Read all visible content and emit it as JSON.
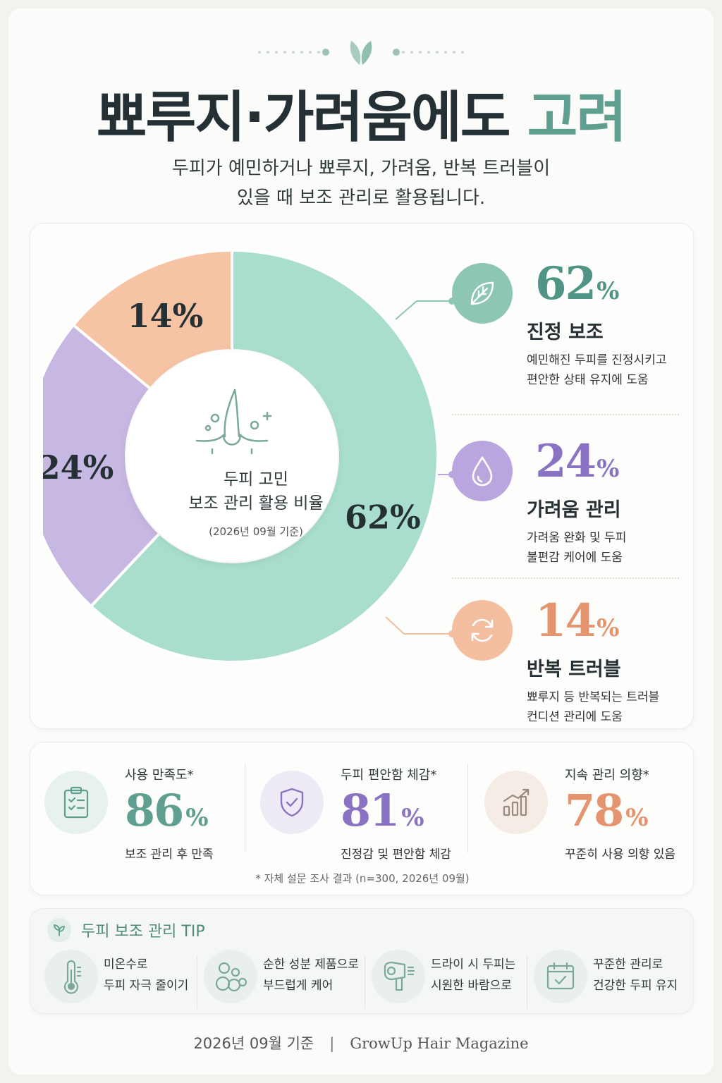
{
  "title": {
    "main": "뾰루지·가려움에도 ",
    "accent": "고려"
  },
  "subtitle": {
    "line1": "두피가 예민하거나 뾰루지, 가려움, 반복 트러블이",
    "line2": "있을 때 보조 관리로 활용됩니다."
  },
  "chart_data": {
    "type": "pie",
    "categories": [
      "진정 보조",
      "가려움 관리",
      "반복 트러블"
    ],
    "values": [
      62,
      24,
      14
    ],
    "value_labels": [
      "62%",
      "24%",
      "14%"
    ],
    "colors": [
      "#a9dece",
      "#c7b7e3",
      "#f6c3a5"
    ],
    "title": "두피 고민 보조 관리 활용 비율",
    "subtitle": "(2026년 09월 기준)"
  },
  "center": {
    "line1": "두피 고민",
    "line2": "보조 관리 활용 비율",
    "date": "(2026년 09월 기준)"
  },
  "legend": [
    {
      "pct": "62",
      "sign": "%",
      "label": "진정 보조",
      "desc1": "예민해진 두피를 진정시키고",
      "desc2": "편안한 상태 유지에 도움",
      "color": "#4f9484",
      "icon": "leaf-icon"
    },
    {
      "pct": "24",
      "sign": "%",
      "label": "가려움 관리",
      "desc1": "가려움 완화 및 두피",
      "desc2": "불편감 케어에 도움",
      "color": "#8a73c2",
      "icon": "droplet-icon"
    },
    {
      "pct": "14",
      "sign": "%",
      "label": "반복 트러블",
      "desc1": "뾰루지 등 반복되는 트러블",
      "desc2": "컨디션 관리에 도움",
      "color": "#e59470",
      "icon": "refresh-icon"
    }
  ],
  "stats": [
    {
      "label": "사용 만족도*",
      "value": "86",
      "sign": "%",
      "desc": "보조 관리 후 만족",
      "color": "#5f9f8f",
      "icon": "clipboard-check-icon"
    },
    {
      "label": "두피 편안함 체감*",
      "value": "81",
      "sign": "%",
      "desc": "진정감 및 편안함 체감",
      "color": "#8a73c2",
      "icon": "shield-check-icon"
    },
    {
      "label": "지속 관리 의향*",
      "value": "78",
      "sign": "%",
      "desc": "꾸준히 사용 의향 있음",
      "color": "#e59470",
      "icon": "growth-chart-icon"
    }
  ],
  "footnote": "* 자체 설문 조사 결과 (n=300, 2026년 09월)",
  "tips": {
    "title": "두피 보조 관리 TIP",
    "items": [
      {
        "line1": "미온수로",
        "line2": "두피 자극 줄이기",
        "icon": "thermometer-icon"
      },
      {
        "line1": "순한 성분 제품으로",
        "line2": "부드럽게 케어",
        "icon": "bubbles-icon"
      },
      {
        "line1": "드라이 시 두피는",
        "line2": "시원한 바람으로",
        "icon": "hair-dryer-icon"
      },
      {
        "line1": "꾸준한 관리로",
        "line2": "건강한 두피 유지",
        "icon": "calendar-check-icon"
      }
    ]
  },
  "footer": {
    "date": "2026년 09월 기준",
    "separator": "|",
    "magazine": "GrowUp Hair Magazine"
  }
}
